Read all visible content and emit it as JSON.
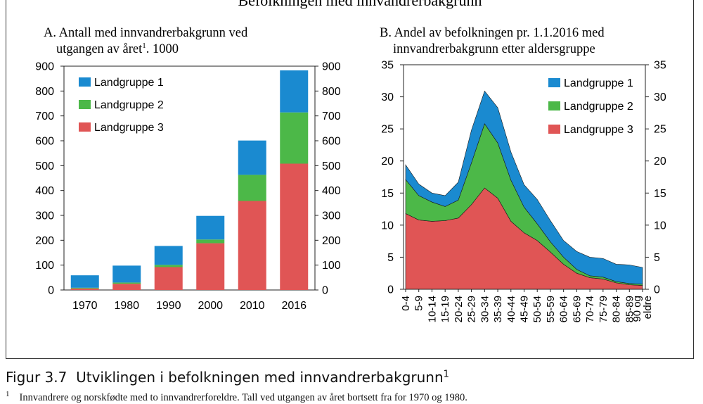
{
  "figure_title": "Befolkningen med innvandrerbakgrunn",
  "caption": {
    "label": "Figur 3.7",
    "text": "Utviklingen i befolkningen med innvandrerbakgrunn",
    "sup": "1"
  },
  "footnote": {
    "sup": "1",
    "text": "Innvandrere og norskfødte med to innvandrerforeldre. Tall ved utgangen av året bortsett fra for 1970 og 1980."
  },
  "colors": {
    "landgruppe1": "#1a8ad0",
    "landgruppe2": "#4cb848",
    "landgruppe3": "#e05555"
  },
  "chart_data": [
    {
      "type": "bar",
      "stacked": true,
      "title_line1": "A. Antall med innvandrerbakgrunn ved",
      "title_line2": "utgangen av året",
      "title_sup": "1",
      "title_suffix": ". 1000",
      "categories": [
        "1970",
        "1980",
        "1990",
        "2000",
        "2010",
        "2016"
      ],
      "series": [
        {
          "name": "Landgruppe 3",
          "values": [
            6,
            25,
            92,
            188,
            358,
            508
          ]
        },
        {
          "name": "Landgruppe 2",
          "values": [
            3,
            5,
            9,
            15,
            105,
            206
          ]
        },
        {
          "name": "Landgruppe 1",
          "values": [
            50,
            68,
            76,
            95,
            138,
            169
          ]
        }
      ],
      "legend": [
        "Landgruppe 1",
        "Landgruppe 2",
        "Landgruppe 3"
      ],
      "ylim": [
        0,
        900
      ],
      "yticks": [
        0,
        100,
        200,
        300,
        400,
        500,
        600,
        700,
        800,
        900
      ],
      "legend_position": "top-left"
    },
    {
      "type": "area",
      "stacked": true,
      "title_line1": "B. Andel av befolkningen pr. 1.1.2016 med",
      "title_line2": "innvandrerbakgrunn etter aldersgruppe",
      "categories": [
        "0-4",
        "5-9",
        "10-14",
        "15-19",
        "20-24",
        "25-29",
        "30-34",
        "35-39",
        "40-44",
        "45-49",
        "50-54",
        "55-59",
        "60-64",
        "65-69",
        "70-74",
        "75-79",
        "80-84",
        "85-89",
        "90 og eldre"
      ],
      "category_labels": [
        "0-4",
        "5-9",
        "10-14",
        "15-19",
        "20-24",
        "25-29",
        "30-34",
        "35-39",
        "40-44",
        "45-49",
        "50-54",
        "55-59",
        "60-64",
        "65-69",
        "70-74",
        "75-79",
        "80-84",
        "85-89",
        "90 og",
        "eldre"
      ],
      "series": [
        {
          "name": "Landgruppe 3",
          "values": [
            11.8,
            10.8,
            10.6,
            10.7,
            11.1,
            13.2,
            15.8,
            14.2,
            10.6,
            8.8,
            7.6,
            5.8,
            3.9,
            2.5,
            1.8,
            1.6,
            1.0,
            0.7,
            0.6
          ]
        },
        {
          "name": "Landgruppe 2",
          "values": [
            5.3,
            3.8,
            3.0,
            2.2,
            2.8,
            6.5,
            10.0,
            8.6,
            6.4,
            4.0,
            2.6,
            1.6,
            1.1,
            0.6,
            0.3,
            0.3,
            0.2,
            0.2,
            0.2
          ]
        },
        {
          "name": "Landgruppe 1",
          "values": [
            2.3,
            1.8,
            1.4,
            1.7,
            2.8,
            5.1,
            5.1,
            5.5,
            4.4,
            3.5,
            3.8,
            3.3,
            2.6,
            2.8,
            2.9,
            2.9,
            2.7,
            2.9,
            2.6
          ]
        }
      ],
      "legend": [
        "Landgruppe 1",
        "Landgruppe 2",
        "Landgruppe 3"
      ],
      "ylim": [
        0,
        35
      ],
      "yticks": [
        0,
        5,
        10,
        15,
        20,
        25,
        30,
        35
      ],
      "legend_position": "top-right"
    }
  ]
}
